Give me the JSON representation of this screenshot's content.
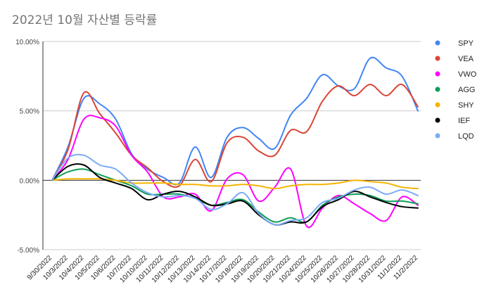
{
  "title": "2022년 10월 자산별 등락률",
  "chart_data": {
    "type": "line",
    "title": "2022년 10월 자산별 등락률",
    "xlabel": "",
    "ylabel": "",
    "ylim": [
      -0.05,
      0.1
    ],
    "yticks": [
      {
        "value": 0.1,
        "label": "10.00%"
      },
      {
        "value": 0.05,
        "label": "5.00%"
      },
      {
        "value": 0.0,
        "label": "0.00%"
      },
      {
        "value": -0.05,
        "label": "-5.00%"
      }
    ],
    "grid": "horizontal",
    "legend_position": "right",
    "x": [
      "9/30/2022",
      "10/3/2022",
      "10/4/2022",
      "10/5/2022",
      "10/6/2022",
      "10/7/2022",
      "10/10/2022",
      "10/11/2022",
      "10/12/2022",
      "10/13/2022",
      "10/14/2022",
      "10/17/2022",
      "10/18/2022",
      "10/19/2022",
      "10/20/2022",
      "10/21/2022",
      "10/24/2022",
      "10/25/2022",
      "10/26/2022",
      "10/27/2022",
      "10/28/2022",
      "10/31/2022",
      "11/1/2022",
      "11/2/2022"
    ],
    "series": [
      {
        "name": "SPY",
        "color": "#4285f4",
        "values": [
          0.0,
          0.024,
          0.059,
          0.055,
          0.044,
          0.019,
          0.008,
          0.002,
          -0.002,
          0.024,
          0.002,
          0.031,
          0.038,
          0.03,
          0.023,
          0.047,
          0.059,
          0.076,
          0.068,
          0.066,
          0.088,
          0.081,
          0.075,
          0.05
        ]
      },
      {
        "name": "VEA",
        "color": "#db4437",
        "values": [
          0.0,
          0.022,
          0.063,
          0.048,
          0.034,
          0.018,
          0.009,
          -0.001,
          -0.004,
          0.015,
          -0.001,
          0.027,
          0.031,
          0.021,
          0.018,
          0.036,
          0.035,
          0.057,
          0.068,
          0.061,
          0.069,
          0.061,
          0.069,
          0.053
        ]
      },
      {
        "name": "VWO",
        "color": "#ff00ff",
        "values": [
          0.0,
          0.015,
          0.044,
          0.045,
          0.039,
          0.018,
          0.006,
          -0.012,
          -0.012,
          -0.01,
          -0.022,
          0.001,
          0.004,
          -0.015,
          -0.005,
          0.008,
          -0.033,
          -0.02,
          -0.011,
          -0.017,
          -0.024,
          -0.029,
          -0.012,
          -0.018
        ]
      },
      {
        "name": "AGG",
        "color": "#0f9d58",
        "values": [
          0.0,
          0.006,
          0.008,
          0.004,
          0.0,
          -0.004,
          -0.01,
          -0.01,
          -0.01,
          -0.013,
          -0.018,
          -0.016,
          -0.014,
          -0.023,
          -0.03,
          -0.027,
          -0.03,
          -0.018,
          -0.012,
          -0.01,
          -0.011,
          -0.015,
          -0.015,
          -0.017
        ]
      },
      {
        "name": "SHY",
        "color": "#f4b400",
        "values": [
          0.0,
          0.001,
          0.001,
          0.001,
          0.0,
          -0.002,
          -0.002,
          -0.002,
          -0.003,
          -0.003,
          -0.004,
          -0.004,
          -0.003,
          -0.004,
          -0.006,
          -0.004,
          -0.003,
          -0.003,
          -0.002,
          0.0,
          -0.001,
          -0.002,
          -0.005,
          -0.006
        ]
      },
      {
        "name": "IEF",
        "color": "#000000",
        "values": [
          0.0,
          0.01,
          0.011,
          0.002,
          -0.002,
          -0.006,
          -0.014,
          -0.01,
          -0.008,
          -0.012,
          -0.018,
          -0.017,
          -0.015,
          -0.025,
          -0.032,
          -0.03,
          -0.03,
          -0.019,
          -0.014,
          -0.008,
          -0.012,
          -0.016,
          -0.019,
          -0.02
        ]
      },
      {
        "name": "LQD",
        "color": "#7baaf7",
        "values": [
          0.0,
          0.016,
          0.018,
          0.011,
          0.008,
          -0.002,
          -0.009,
          -0.012,
          -0.011,
          -0.013,
          -0.021,
          -0.017,
          -0.009,
          -0.024,
          -0.032,
          -0.029,
          -0.027,
          -0.016,
          -0.013,
          -0.007,
          -0.005,
          -0.01,
          -0.007,
          -0.011
        ]
      }
    ]
  }
}
